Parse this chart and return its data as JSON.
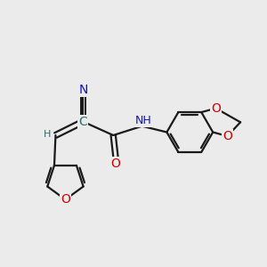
{
  "bg_color": "#ebebeb",
  "bond_color": "#2d6b6b",
  "bond_color_dark": "#1a1a1a",
  "bond_width": 1.6,
  "atom_colors": {
    "C": "#2d6b6b",
    "N": "#1010cc",
    "O": "#cc0000",
    "H": "#2d6b6b"
  },
  "font_size_atom": 10,
  "font_size_h": 8,
  "figsize": [
    3.0,
    3.0
  ],
  "dpi": 100
}
